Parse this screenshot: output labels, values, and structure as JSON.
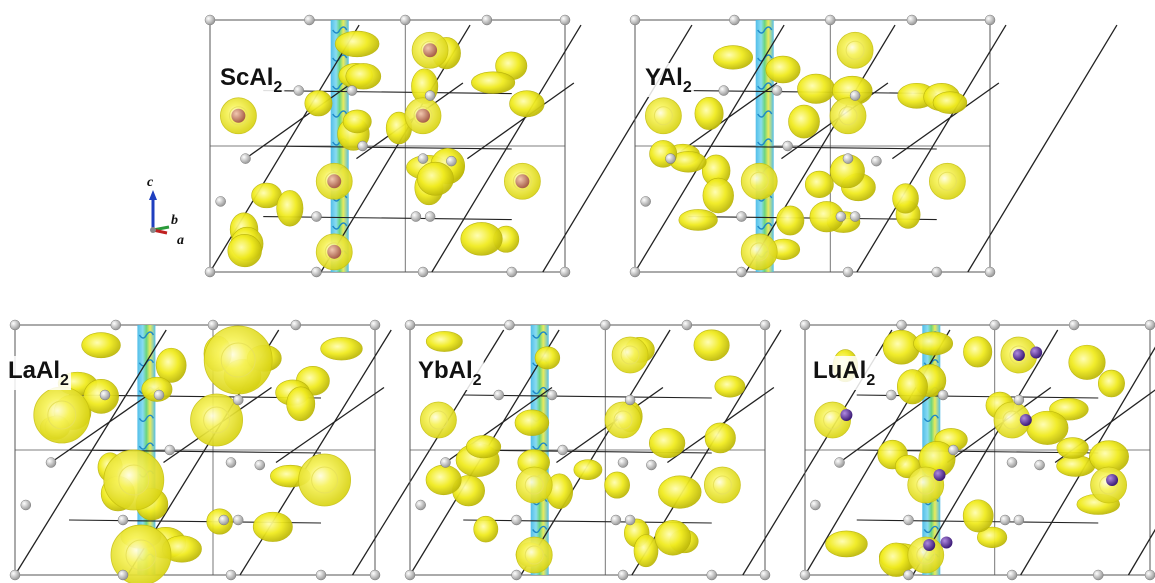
{
  "panels": [
    {
      "id": "scal2",
      "formula": "ScAl",
      "subscript": "2",
      "heavy_atoms": "brown"
    },
    {
      "id": "yal2",
      "formula": "YAl",
      "subscript": "2",
      "heavy_atoms": "none"
    },
    {
      "id": "laal2",
      "formula": "LaAl",
      "subscript": "2",
      "heavy_atoms": "none"
    },
    {
      "id": "ybal2",
      "formula": "YbAl",
      "subscript": "2",
      "heavy_atoms": "none"
    },
    {
      "id": "lual2",
      "formula": "LuAl",
      "subscript": "2",
      "heavy_atoms": "purple"
    }
  ],
  "axes": {
    "c": "c",
    "b": "b",
    "a": "a"
  },
  "colors": {
    "isosurface": "#f2ee1e",
    "isosurface_dark": "#c9c410",
    "bond": "#222222",
    "cell_edge": "#555555",
    "al_atom": "#c8c8c8",
    "sc_atom": "#c98a6a",
    "lu_atom": "#6a3aa0",
    "slice_blue": "#3fb6e6",
    "slice_green": "#5ad070",
    "axis_c": "#1f3fbf",
    "axis_b": "#2a9a3a",
    "axis_a": "#c02020"
  }
}
